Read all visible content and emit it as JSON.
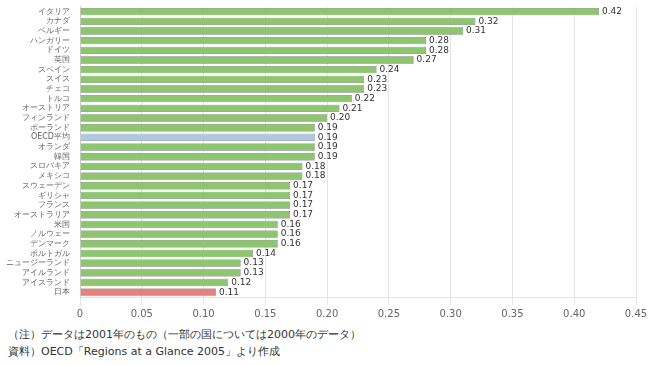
{
  "chart_data": {
    "type": "bar",
    "orientation": "horizontal",
    "categories": [
      "イタリア",
      "カナダ",
      "ベルギー",
      "ハンガリー",
      "ドイツ",
      "英国",
      "スペイン",
      "スイス",
      "チェコ",
      "トルコ",
      "オーストリア",
      "フィンランド",
      "ポーランド",
      "OECD平均",
      "オランダ",
      "韓国",
      "スロバキア",
      "メキシコ",
      "スウェーデン",
      "ギリシャ",
      "フランス",
      "オーストラリア",
      "米国",
      "ノルウェー",
      "デンマーク",
      "ポルトガル",
      "ニュージーランド",
      "アイルランド",
      "アイスランド",
      "日本"
    ],
    "values": [
      0.42,
      0.32,
      0.31,
      0.28,
      0.28,
      0.27,
      0.24,
      0.23,
      0.23,
      0.22,
      0.21,
      0.2,
      0.19,
      0.19,
      0.19,
      0.19,
      0.18,
      0.18,
      0.17,
      0.17,
      0.17,
      0.17,
      0.16,
      0.16,
      0.16,
      0.14,
      0.13,
      0.13,
      0.12,
      0.11
    ],
    "value_labels": [
      "0.42",
      "0.32",
      "0.31",
      "0.28",
      "0.28",
      "0.27",
      "0.24",
      "0.23",
      "0.23",
      "0.22",
      "0.21",
      "0.20",
      "0.19",
      "0.19",
      "0.19",
      "0.19",
      "0.18",
      "0.18",
      "0.17",
      "0.17",
      "0.17",
      "0.17",
      "0.16",
      "0.16",
      "0.16",
      "0.14",
      "0.13",
      "0.13",
      "0.12",
      "0.11"
    ],
    "colors": [
      "#8dc66e",
      "#8dc66e",
      "#8dc66e",
      "#8dc66e",
      "#8dc66e",
      "#8dc66e",
      "#8dc66e",
      "#8dc66e",
      "#8dc66e",
      "#8dc66e",
      "#8dc66e",
      "#8dc66e",
      "#8dc66e",
      "#b0c8e0",
      "#8dc66e",
      "#8dc66e",
      "#8dc66e",
      "#8dc66e",
      "#8dc66e",
      "#8dc66e",
      "#8dc66e",
      "#8dc66e",
      "#8dc66e",
      "#8dc66e",
      "#8dc66e",
      "#8dc66e",
      "#8dc66e",
      "#8dc66e",
      "#8dc66e",
      "#e88080"
    ],
    "xlim": [
      0,
      0.45
    ],
    "xticks": [
      0,
      0.05,
      {
        "value": 0.1,
        "label": "0.10"
      },
      0.15,
      {
        "value": 0.2,
        "label": "0.20"
      },
      0.25,
      {
        "value": 0.3,
        "label": "0.30"
      },
      0.35,
      {
        "value": 0.4,
        "label": "0.40"
      },
      0.45
    ],
    "grid": true,
    "data_labels": true,
    "annotations": [
      "（注）データは2001年のもの（一部の国については2000年のデータ）",
      "資料）OECD「Regions at a Glance 2005」より作成"
    ]
  }
}
